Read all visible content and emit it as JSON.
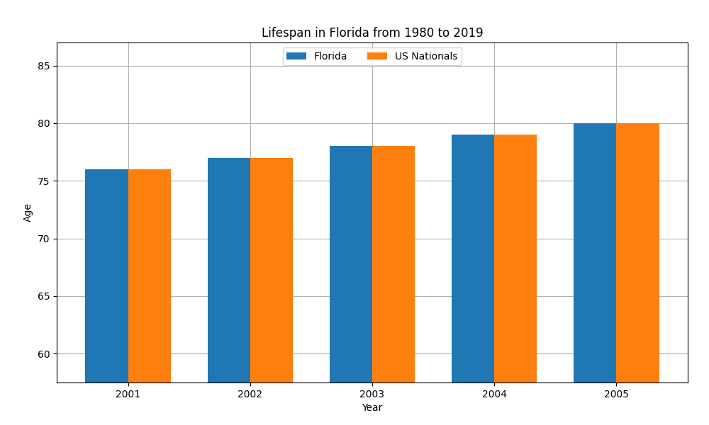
{
  "chart_data": {
    "type": "bar",
    "title": "Lifespan in Florida from 1980 to 2019",
    "x_label": "Year",
    "y_label": "Age",
    "categories": [
      "2001",
      "2002",
      "2003",
      "2004",
      "2005"
    ],
    "series": [
      {
        "name": "Florida",
        "values": [
          76.0,
          77.0,
          78.0,
          79.0,
          80.0
        ]
      },
      {
        "name": "US Nationals",
        "values": [
          76.0,
          77.0,
          78.0,
          79.0,
          80.0
        ]
      }
    ],
    "ylim": [
      57.5,
      87
    ],
    "yticks": [
      60,
      65,
      70,
      75,
      80,
      85
    ],
    "grid": true,
    "legend": "upper center"
  }
}
